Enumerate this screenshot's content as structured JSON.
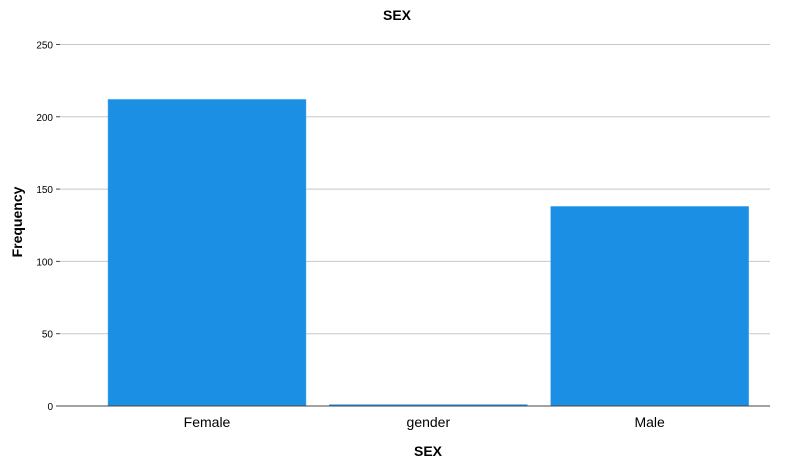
{
  "chart_data": {
    "type": "bar",
    "title": "SEX",
    "xlabel": "SEX",
    "ylabel": "Frequency",
    "categories": [
      "Female",
      "gender",
      "Male"
    ],
    "values": [
      212,
      1,
      138
    ],
    "ylim": [
      0,
      260
    ],
    "yticks": [
      0,
      50,
      100,
      150,
      200,
      250
    ],
    "grid": true,
    "bar_color": "#1a8fe3",
    "grid_color": "#c8c8c8",
    "axis_color": "#444444"
  }
}
